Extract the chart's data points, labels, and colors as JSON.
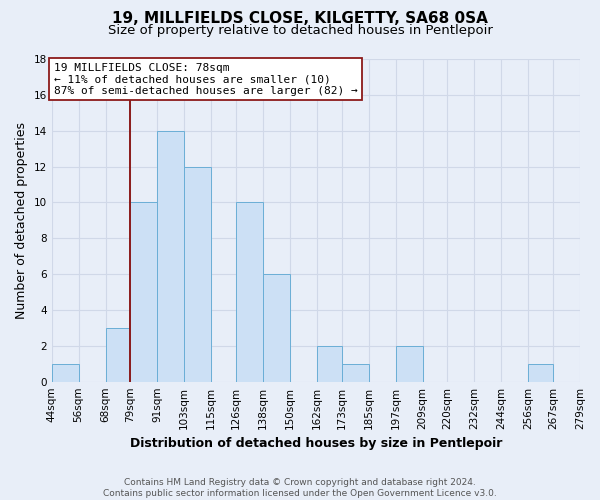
{
  "title": "19, MILLFIELDS CLOSE, KILGETTY, SA68 0SA",
  "subtitle": "Size of property relative to detached houses in Pentlepoir",
  "xlabel": "Distribution of detached houses by size in Pentlepoir",
  "ylabel": "Number of detached properties",
  "footer_line1": "Contains HM Land Registry data © Crown copyright and database right 2024.",
  "footer_line2": "Contains public sector information licensed under the Open Government Licence v3.0.",
  "bin_edges": [
    44,
    56,
    68,
    79,
    91,
    103,
    115,
    126,
    138,
    150,
    162,
    173,
    185,
    197,
    209,
    220,
    232,
    244,
    256,
    267,
    279
  ],
  "bin_labels": [
    "44sqm",
    "56sqm",
    "68sqm",
    "79sqm",
    "91sqm",
    "103sqm",
    "115sqm",
    "126sqm",
    "138sqm",
    "150sqm",
    "162sqm",
    "173sqm",
    "185sqm",
    "197sqm",
    "209sqm",
    "220sqm",
    "232sqm",
    "244sqm",
    "256sqm",
    "267sqm",
    "279sqm"
  ],
  "counts": [
    1,
    0,
    3,
    10,
    14,
    12,
    0,
    10,
    6,
    0,
    2,
    1,
    0,
    2,
    0,
    0,
    0,
    0,
    1,
    0
  ],
  "bar_color": "#cce0f5",
  "bar_edge_color": "#6aaed6",
  "property_line_x": 79,
  "property_line_color": "#8b1a1a",
  "annotation_line1": "19 MILLFIELDS CLOSE: 78sqm",
  "annotation_line2": "← 11% of detached houses are smaller (10)",
  "annotation_line3": "87% of semi-detached houses are larger (82) →",
  "annotation_box_facecolor": "#ffffff",
  "annotation_box_edgecolor": "#8b1a1a",
  "ylim": [
    0,
    18
  ],
  "yticks": [
    0,
    2,
    4,
    6,
    8,
    10,
    12,
    14,
    16,
    18
  ],
  "background_color": "#e8eef8",
  "plot_background_color": "#e8eef8",
  "grid_color": "#d0d8e8",
  "title_fontsize": 11,
  "subtitle_fontsize": 9.5,
  "ylabel_fontsize": 9,
  "xlabel_fontsize": 9,
  "tick_fontsize": 7.5,
  "annotation_fontsize": 8,
  "footer_fontsize": 6.5
}
